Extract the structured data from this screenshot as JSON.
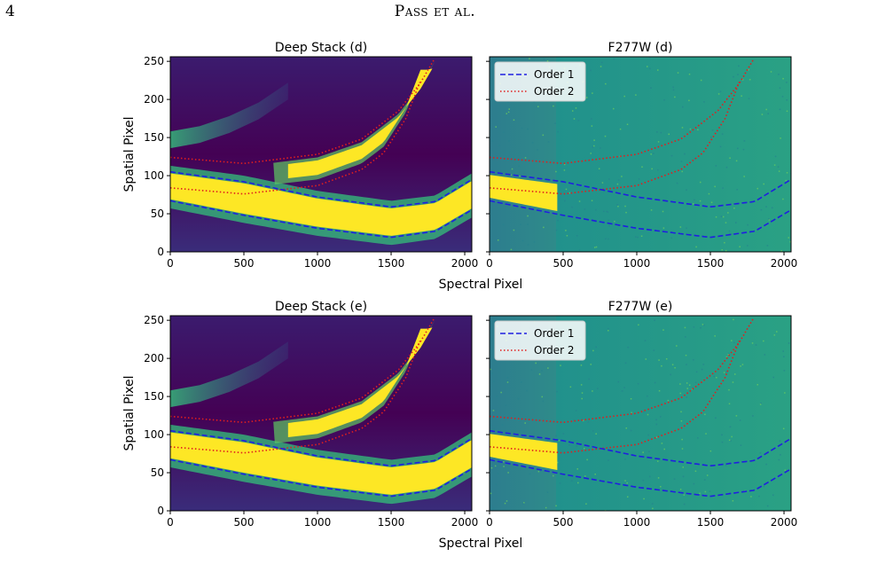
{
  "page": {
    "number": "4",
    "running_head": "Pass et al."
  },
  "figure": {
    "xlabel": "Spectral Pixel",
    "ylabel": "Spatial Pixel",
    "xticks": [
      0,
      500,
      1000,
      1500,
      2000
    ],
    "yticks": [
      0,
      50,
      100,
      150,
      200,
      250
    ],
    "xlim": [
      0,
      2048
    ],
    "ylim": [
      0,
      256
    ],
    "legend": {
      "placement": "top-left",
      "entries": [
        "Order 1",
        "Order 2"
      ]
    },
    "colors": {
      "order1": "#1f1fe0",
      "order2": "#e01f1f",
      "viridis_low": "#440154",
      "viridis_mid": "#21918c",
      "viridis_high": "#fde725"
    },
    "panels": [
      {
        "id": "a",
        "title": "Deep Stack (d)",
        "kind": "deep",
        "legend": false
      },
      {
        "id": "b",
        "title": "F277W (d)",
        "kind": "f277w",
        "legend": true
      },
      {
        "id": "c",
        "title": "Deep Stack (e)",
        "kind": "deep",
        "legend": false
      },
      {
        "id": "d",
        "title": "F277W (e)",
        "kind": "f277w",
        "legend": true
      }
    ]
  },
  "chart_data": {
    "type": "line",
    "title": "",
    "xlabel": "Spectral Pixel",
    "ylabel": "Spatial Pixel",
    "xlim": [
      0,
      2048
    ],
    "ylim": [
      0,
      256
    ],
    "series": [
      {
        "name": "Order 1",
        "style": "dashed",
        "color": "#1f1fe0",
        "upper": {
          "x": [
            0,
            500,
            1000,
            1500,
            1800,
            2048
          ],
          "y": [
            105,
            92,
            72,
            59,
            66,
            95
          ]
        },
        "lower": {
          "x": [
            0,
            500,
            1000,
            1500,
            1800,
            2048
          ],
          "y": [
            67,
            48,
            31,
            19,
            27,
            55
          ]
        }
      },
      {
        "name": "Order 2",
        "style": "dotted",
        "color": "#e01f1f",
        "upper": {
          "x": [
            0,
            500,
            1000,
            1300,
            1550,
            1700,
            1800
          ],
          "y": [
            124,
            116,
            128,
            148,
            185,
            222,
            255
          ]
        },
        "lower": {
          "x": [
            0,
            500,
            1000,
            1300,
            1450,
            1600,
            1700
          ],
          "y": [
            84,
            76,
            87,
            108,
            130,
            175,
            225
          ]
        }
      }
    ]
  }
}
